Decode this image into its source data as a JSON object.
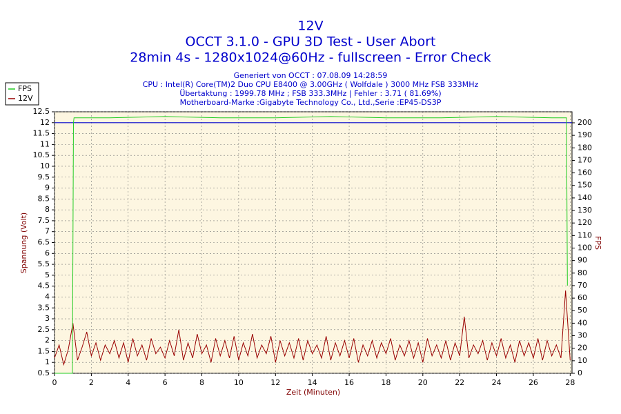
{
  "chart_data": {
    "type": "line",
    "title": [
      "12V",
      "OCCT 3.1.0 - GPU 3D Test - User Abort",
      "28min 4s - 1280x1024@60Hz - fullscreen - Error Check"
    ],
    "subtitle": [
      "Generiert von OCCT : 07.08.09 14:28:59",
      "CPU : Intel(R) Core(TM)2 Duo CPU E8400 @ 3.00GHz ( Wolfdale ) 3000 MHz FSB 333MHz",
      "Übertaktung : 1999.78 MHz ; FSB 333.3MHz | Fehler : 3.71 ( 81.69%)",
      "Motherboard-Marke :Gigabyte Technology Co., Ltd.,Serie :EP45-DS3P"
    ],
    "xlabel": "Zeit (Minuten)",
    "ylabel": "Spannung (Volt)",
    "y2label": "FPS",
    "legend": "top-left",
    "grid": true,
    "xlim": [
      0,
      28.1
    ],
    "xticks": [
      0,
      2,
      4,
      6,
      8,
      10,
      12,
      14,
      16,
      18,
      20,
      22,
      24,
      26,
      28
    ],
    "ylim": [
      0.5,
      12.5
    ],
    "yticks": [
      0.5,
      1,
      1.5,
      2,
      2.5,
      3,
      3.5,
      4,
      4.5,
      5,
      5.5,
      6,
      6.5,
      7,
      7.5,
      8,
      8.5,
      9,
      9.5,
      10,
      10.5,
      11,
      11.5,
      12,
      12.5
    ],
    "y2lim": [
      0,
      208.8
    ],
    "y2ticks": [
      0,
      10,
      20,
      30,
      40,
      50,
      60,
      70,
      80,
      90,
      100,
      110,
      120,
      130,
      140,
      150,
      160,
      170,
      180,
      190,
      200
    ],
    "hline": {
      "value": 12,
      "color": "#0000cc"
    },
    "series": [
      {
        "name": "FPS",
        "color": "#22cc22",
        "axis": "y2",
        "x": [
          0,
          0.97,
          1.0,
          1.03,
          1.06,
          3,
          6,
          9,
          12,
          15,
          18,
          21,
          24,
          27,
          27.8,
          27.85
        ],
        "values": [
          0,
          0,
          100,
          200,
          204,
          204,
          205,
          204,
          204,
          205,
          204,
          204,
          205,
          204,
          204,
          70
        ]
      },
      {
        "name": "12V",
        "color": "#990000",
        "x": [
          0,
          0.25,
          0.5,
          0.75,
          1,
          1.25,
          1.5,
          1.75,
          2,
          2.25,
          2.5,
          2.75,
          3,
          3.25,
          3.5,
          3.75,
          4,
          4.25,
          4.5,
          4.75,
          5,
          5.25,
          5.5,
          5.75,
          6,
          6.25,
          6.5,
          6.75,
          7,
          7.25,
          7.5,
          7.75,
          8,
          8.25,
          8.5,
          8.75,
          9,
          9.25,
          9.5,
          9.75,
          10,
          10.25,
          10.5,
          10.75,
          11,
          11.25,
          11.5,
          11.75,
          12,
          12.25,
          12.5,
          12.75,
          13,
          13.25,
          13.5,
          13.75,
          14,
          14.25,
          14.5,
          14.75,
          15,
          15.25,
          15.5,
          15.75,
          16,
          16.25,
          16.5,
          16.75,
          17,
          17.25,
          17.5,
          17.75,
          18,
          18.25,
          18.5,
          18.75,
          19,
          19.25,
          19.5,
          19.75,
          20,
          20.25,
          20.5,
          20.75,
          21,
          21.25,
          21.5,
          21.75,
          22,
          22.25,
          22.5,
          22.75,
          23,
          23.25,
          23.5,
          23.75,
          24,
          24.25,
          24.5,
          24.75,
          25,
          25.25,
          25.5,
          25.75,
          26,
          26.25,
          26.5,
          26.75,
          27,
          27.25,
          27.5,
          27.75,
          28
        ],
        "values": [
          1.2,
          1.8,
          0.9,
          1.6,
          2.8,
          1.1,
          1.7,
          2.4,
          1.3,
          1.9,
          1.1,
          1.8,
          1.4,
          2.0,
          1.2,
          1.9,
          1.0,
          2.1,
          1.3,
          1.8,
          1.1,
          2.1,
          1.4,
          1.7,
          1.2,
          2.0,
          1.3,
          2.5,
          1.1,
          1.9,
          1.2,
          2.3,
          1.4,
          1.8,
          1.0,
          2.1,
          1.3,
          2.0,
          1.2,
          2.2,
          1.1,
          1.9,
          1.3,
          2.3,
          1.2,
          1.8,
          1.4,
          2.2,
          1.0,
          2.0,
          1.3,
          1.9,
          1.2,
          2.1,
          1.1,
          2.0,
          1.4,
          1.8,
          1.2,
          2.2,
          1.1,
          1.9,
          1.3,
          2.0,
          1.2,
          2.1,
          1.0,
          1.8,
          1.3,
          2.0,
          1.2,
          1.9,
          1.4,
          2.1,
          1.1,
          1.8,
          1.3,
          2.0,
          1.2,
          1.9,
          1.0,
          2.1,
          1.3,
          1.8,
          1.2,
          2.0,
          1.1,
          1.9,
          1.3,
          3.1,
          1.2,
          1.8,
          1.4,
          2.0,
          1.1,
          1.9,
          1.3,
          2.1,
          1.2,
          1.8,
          1.0,
          2.0,
          1.3,
          1.9,
          1.2,
          2.1,
          1.1,
          2.0,
          1.3,
          1.8,
          1.2,
          4.3,
          1.1
        ]
      }
    ]
  }
}
